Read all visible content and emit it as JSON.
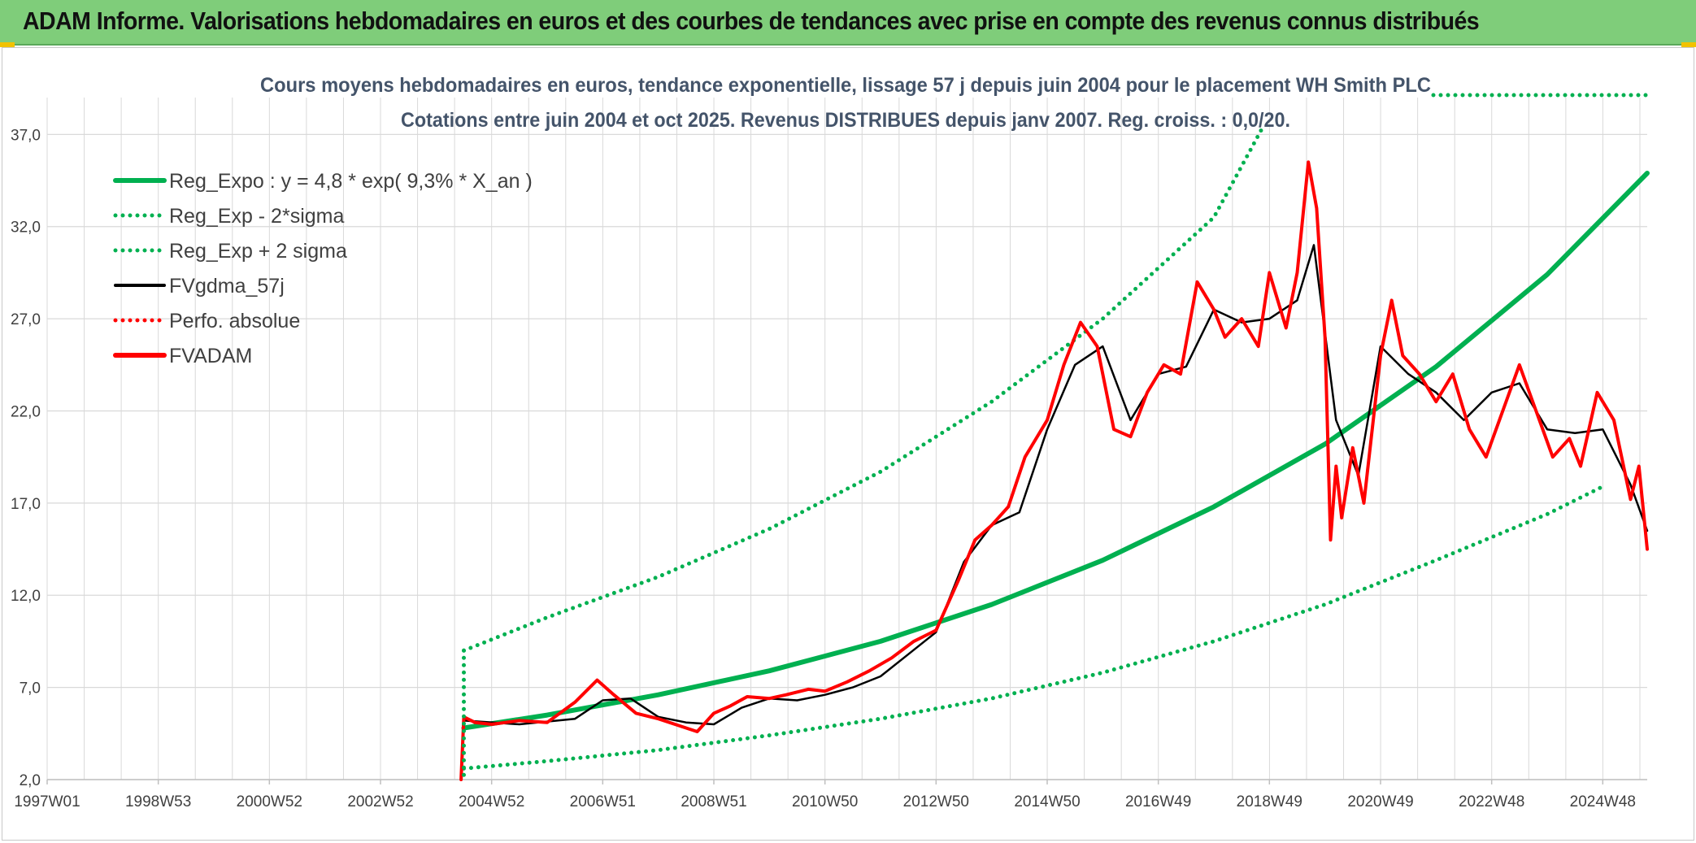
{
  "header": {
    "title": "ADAM Informe. Valorisations hebdomadaires en euros et des courbes de tendances avec prise en compte des revenus connus distribués"
  },
  "colors": {
    "header_bg": "#7fcd7a",
    "reg_green": "#00b050",
    "price_red": "#ff0000",
    "smooth_black": "#000000",
    "grid": "#d9d9d9"
  },
  "chart_data": {
    "type": "line",
    "title": "Cours moyens hebdomadaires en euros, tendance exponentielle, lissage 57 j depuis juin 2004 pour le placement WH Smith PLC",
    "subtitle": "Cotations entre juin 2004 et oct 2025. Revenus DISTRIBUES depuis janv 2007. Reg. croiss. : 0,0/20.",
    "xlim": [
      1997.0,
      2025.8
    ],
    "ylim": [
      2.0,
      39.0
    ],
    "y_ticks": [
      2.0,
      7.0,
      12.0,
      17.0,
      22.0,
      27.0,
      32.0,
      37.0
    ],
    "y_tick_labels": [
      "2,0",
      "7,0",
      "12,0",
      "17,0",
      "22,0",
      "27,0",
      "32,0",
      "37,0"
    ],
    "x_ticks": [
      1997.0,
      1999.0,
      2001.0,
      2003.0,
      2005.0,
      2007.0,
      2009.0,
      2011.0,
      2013.0,
      2015.0,
      2017.0,
      2019.0,
      2021.0,
      2023.0,
      2025.0
    ],
    "x_tick_labels": [
      "1997W01",
      "1998W53",
      "2000W52",
      "2002W52",
      "2004W52",
      "2006W51",
      "2008W51",
      "2010W50",
      "2012W50",
      "2014W50",
      "2016W49",
      "2018W49",
      "2020W49",
      "2022W48",
      "2024W48"
    ],
    "grid": true,
    "legend_position": "top-left",
    "series": [
      {
        "name": "Reg_Expo : y = 4,8 * exp( 9,3% *  X_an )",
        "style": "solid-thick",
        "color": "#00b050",
        "x": [
          2004.5,
          2006.0,
          2008.0,
          2010.0,
          2012.0,
          2014.0,
          2016.0,
          2018.0,
          2020.0,
          2022.0,
          2024.0,
          2025.8
        ],
        "y": [
          4.8,
          5.5,
          6.6,
          7.9,
          9.5,
          11.5,
          13.9,
          16.8,
          20.2,
          24.4,
          29.4,
          34.9
        ]
      },
      {
        "name": "Reg_Exp - 2*sigma",
        "style": "dotted",
        "color": "#00b050",
        "x": [
          2004.5,
          2006.0,
          2008.0,
          2010.0,
          2012.0,
          2014.0,
          2016.0,
          2018.0,
          2020.0,
          2022.0,
          2024.0,
          2025.0
        ],
        "y": [
          2.6,
          3.0,
          3.6,
          4.4,
          5.3,
          6.4,
          7.8,
          9.5,
          11.5,
          13.9,
          16.4,
          17.9
        ]
      },
      {
        "name": "Reg_Exp + 2 sigma",
        "style": "dotted",
        "color": "#00b050",
        "x": [
          2004.5,
          2006.0,
          2008.0,
          2010.0,
          2012.0,
          2014.0,
          2016.0,
          2018.0,
          2018.9
        ],
        "y": [
          9.0,
          10.8,
          13.0,
          15.6,
          18.7,
          22.5,
          27.0,
          32.5,
          37.5
        ]
      },
      {
        "name": "FVgdma_57j",
        "style": "solid-thin",
        "color": "#000000",
        "x": [
          2004.5,
          2005.5,
          2006.5,
          2007.0,
          2007.5,
          2008.0,
          2008.5,
          2009.0,
          2009.5,
          2010.0,
          2010.5,
          2011.0,
          2011.5,
          2012.0,
          2012.5,
          2013.0,
          2013.5,
          2014.0,
          2014.5,
          2015.0,
          2015.5,
          2016.0,
          2016.5,
          2017.0,
          2017.5,
          2018.0,
          2018.5,
          2019.0,
          2019.5,
          2019.8,
          2020.2,
          2020.6,
          2021.0,
          2021.5,
          2022.0,
          2022.5,
          2023.0,
          2023.5,
          2024.0,
          2024.5,
          2025.0,
          2025.5,
          2025.8
        ],
        "y": [
          5.2,
          5.0,
          5.3,
          6.3,
          6.4,
          5.4,
          5.1,
          5.0,
          5.9,
          6.4,
          6.3,
          6.6,
          7.0,
          7.6,
          8.8,
          10.0,
          13.8,
          15.8,
          16.5,
          21.0,
          24.5,
          25.5,
          21.5,
          24.0,
          24.4,
          27.5,
          26.8,
          27.0,
          28.0,
          31.0,
          21.5,
          18.5,
          25.5,
          24.0,
          23.0,
          21.5,
          23.0,
          23.5,
          21.0,
          20.8,
          21.0,
          18.0,
          15.5
        ]
      },
      {
        "name": "Perfo. absolue",
        "style": "dotted",
        "color": "#ff0000",
        "x": [],
        "y": []
      },
      {
        "name": "FVADAM",
        "style": "solid-thick",
        "color": "#ff0000",
        "x": [
          2004.45,
          2004.5,
          2004.7,
          2005.0,
          2005.5,
          2006.0,
          2006.5,
          2006.9,
          2007.2,
          2007.6,
          2008.0,
          2008.3,
          2008.7,
          2009.0,
          2009.3,
          2009.6,
          2010.0,
          2010.3,
          2010.7,
          2011.0,
          2011.4,
          2011.8,
          2012.2,
          2012.6,
          2013.0,
          2013.4,
          2013.7,
          2014.0,
          2014.3,
          2014.6,
          2015.0,
          2015.3,
          2015.6,
          2015.9,
          2016.2,
          2016.5,
          2016.8,
          2017.1,
          2017.4,
          2017.7,
          2018.0,
          2018.2,
          2018.5,
          2018.8,
          2019.0,
          2019.3,
          2019.5,
          2019.7,
          2019.85,
          2020.0,
          2020.1,
          2020.2,
          2020.3,
          2020.5,
          2020.7,
          2021.0,
          2021.2,
          2021.4,
          2021.7,
          2022.0,
          2022.3,
          2022.6,
          2022.9,
          2023.2,
          2023.5,
          2023.8,
          2024.1,
          2024.4,
          2024.6,
          2024.9,
          2025.2,
          2025.5,
          2025.65,
          2025.8
        ],
        "y": [
          2.0,
          5.4,
          5.1,
          5.0,
          5.2,
          5.1,
          6.2,
          7.4,
          6.6,
          5.6,
          5.3,
          5.0,
          4.6,
          5.6,
          6.0,
          6.5,
          6.4,
          6.6,
          6.9,
          6.8,
          7.3,
          7.9,
          8.6,
          9.5,
          10.1,
          12.8,
          15.0,
          15.8,
          16.8,
          19.5,
          21.5,
          24.5,
          26.8,
          25.5,
          21.0,
          20.6,
          23.0,
          24.5,
          24.0,
          29.0,
          27.5,
          26.0,
          27.0,
          25.5,
          29.5,
          26.5,
          29.5,
          35.5,
          33.0,
          26.0,
          15.0,
          19.0,
          16.2,
          20.0,
          17.0,
          25.0,
          28.0,
          25.0,
          24.0,
          22.5,
          24.0,
          21.0,
          19.5,
          22.0,
          24.5,
          22.0,
          19.5,
          20.5,
          19.0,
          23.0,
          21.5,
          17.2,
          19.0,
          14.5
        ]
      }
    ]
  }
}
